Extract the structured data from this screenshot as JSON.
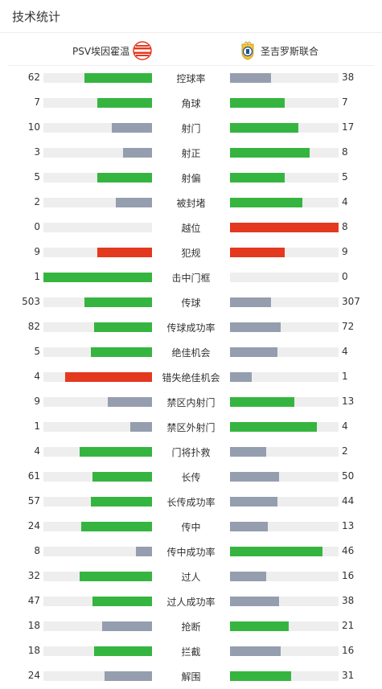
{
  "header": {
    "title": "技术统计"
  },
  "teams": {
    "home": "PSV埃因霍温",
    "away": "圣吉罗斯联合"
  },
  "colors": {
    "green": "#35b540",
    "grey": "#959eae",
    "red": "#e3391f",
    "track": "#eeeeee"
  },
  "stats": [
    {
      "label": "控球率",
      "home": "62",
      "away": "38",
      "home_level": 0.62,
      "away_level": 0.38,
      "home_color": "green",
      "away_color": "grey"
    },
    {
      "label": "角球",
      "home": "7",
      "away": "7",
      "home_level": 0.5,
      "away_level": 0.5,
      "home_color": "green",
      "away_color": "green"
    },
    {
      "label": "射门",
      "home": "10",
      "away": "17",
      "home_level": 0.37,
      "away_level": 0.63,
      "home_color": "grey",
      "away_color": "green"
    },
    {
      "label": "射正",
      "home": "3",
      "away": "8",
      "home_level": 0.27,
      "away_level": 0.73,
      "home_color": "grey",
      "away_color": "green"
    },
    {
      "label": "射偏",
      "home": "5",
      "away": "5",
      "home_level": 0.5,
      "away_level": 0.5,
      "home_color": "green",
      "away_color": "green"
    },
    {
      "label": "被封堵",
      "home": "2",
      "away": "4",
      "home_level": 0.33,
      "away_level": 0.67,
      "home_color": "grey",
      "away_color": "green"
    },
    {
      "label": "越位",
      "home": "0",
      "away": "8",
      "home_level": 0,
      "away_level": 1,
      "home_color": "grey",
      "away_color": "red"
    },
    {
      "label": "犯规",
      "home": "9",
      "away": "9",
      "home_level": 0.5,
      "away_level": 0.5,
      "home_color": "red",
      "away_color": "red"
    },
    {
      "label": "击中门框",
      "home": "1",
      "away": "0",
      "home_level": 1,
      "away_level": 0,
      "home_color": "green",
      "away_color": "grey"
    },
    {
      "label": "传球",
      "home": "503",
      "away": "307",
      "home_level": 0.62,
      "away_level": 0.38,
      "home_color": "green",
      "away_color": "grey"
    },
    {
      "label": "传球成功率",
      "home": "82",
      "away": "72",
      "home_level": 0.53,
      "away_level": 0.47,
      "home_color": "green",
      "away_color": "grey"
    },
    {
      "label": "绝佳机会",
      "home": "5",
      "away": "4",
      "home_level": 0.56,
      "away_level": 0.44,
      "home_color": "green",
      "away_color": "grey"
    },
    {
      "label": "错失绝佳机会",
      "home": "4",
      "away": "1",
      "home_level": 0.8,
      "away_level": 0.2,
      "home_color": "red",
      "away_color": "grey"
    },
    {
      "label": "禁区内射门",
      "home": "9",
      "away": "13",
      "home_level": 0.41,
      "away_level": 0.59,
      "home_color": "grey",
      "away_color": "green"
    },
    {
      "label": "禁区外射门",
      "home": "1",
      "away": "4",
      "home_level": 0.2,
      "away_level": 0.8,
      "home_color": "grey",
      "away_color": "green"
    },
    {
      "label": "门将扑救",
      "home": "4",
      "away": "2",
      "home_level": 0.67,
      "away_level": 0.33,
      "home_color": "green",
      "away_color": "grey"
    },
    {
      "label": "长传",
      "home": "61",
      "away": "50",
      "home_level": 0.55,
      "away_level": 0.45,
      "home_color": "green",
      "away_color": "grey"
    },
    {
      "label": "长传成功率",
      "home": "57",
      "away": "44",
      "home_level": 0.56,
      "away_level": 0.44,
      "home_color": "green",
      "away_color": "grey"
    },
    {
      "label": "传中",
      "home": "24",
      "away": "13",
      "home_level": 0.65,
      "away_level": 0.35,
      "home_color": "green",
      "away_color": "grey"
    },
    {
      "label": "传中成功率",
      "home": "8",
      "away": "46",
      "home_level": 0.15,
      "away_level": 0.85,
      "home_color": "grey",
      "away_color": "green"
    },
    {
      "label": "过人",
      "home": "32",
      "away": "16",
      "home_level": 0.67,
      "away_level": 0.33,
      "home_color": "green",
      "away_color": "grey"
    },
    {
      "label": "过人成功率",
      "home": "47",
      "away": "38",
      "home_level": 0.55,
      "away_level": 0.45,
      "home_color": "green",
      "away_color": "grey"
    },
    {
      "label": "抢断",
      "home": "18",
      "away": "21",
      "home_level": 0.46,
      "away_level": 0.54,
      "home_color": "grey",
      "away_color": "green"
    },
    {
      "label": "拦截",
      "home": "18",
      "away": "16",
      "home_level": 0.53,
      "away_level": 0.47,
      "home_color": "green",
      "away_color": "grey"
    },
    {
      "label": "解围",
      "home": "24",
      "away": "31",
      "home_level": 0.44,
      "away_level": 0.56,
      "home_color": "grey",
      "away_color": "green"
    }
  ]
}
